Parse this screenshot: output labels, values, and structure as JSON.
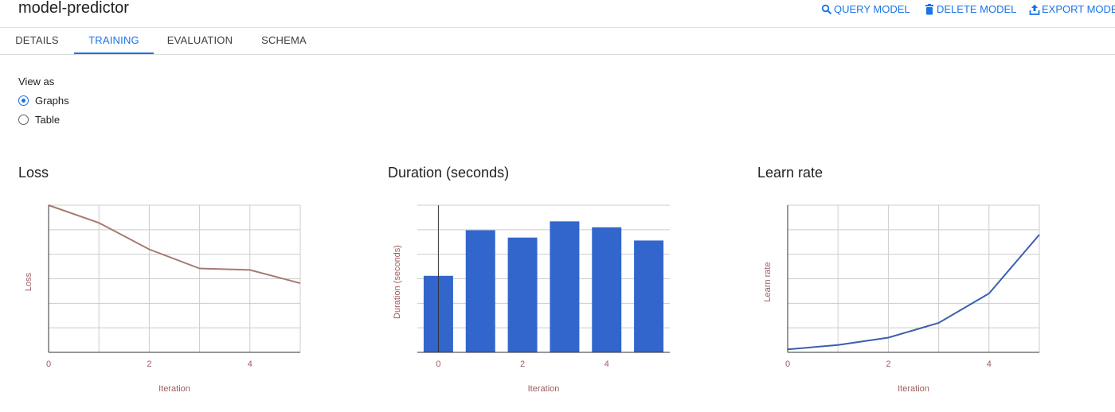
{
  "header": {
    "title": "model-predictor",
    "actions": [
      {
        "label": "QUERY MODEL",
        "icon": "search-icon"
      },
      {
        "label": "DELETE MODEL",
        "icon": "trash-icon"
      },
      {
        "label": "EXPORT MODEL",
        "icon": "export-icon"
      }
    ]
  },
  "tabs": [
    {
      "label": "DETAILS",
      "active": false
    },
    {
      "label": "TRAINING",
      "active": true
    },
    {
      "label": "EVALUATION",
      "active": false
    },
    {
      "label": "SCHEMA",
      "active": false
    }
  ],
  "view_as": {
    "label": "View as",
    "options": [
      {
        "label": "Graphs",
        "checked": true
      },
      {
        "label": "Table",
        "checked": false
      }
    ]
  },
  "colors": {
    "accent": "#1a73e8",
    "bar": "#3366cc",
    "loss_line": "#a67b6f",
    "learn_line": "#3a5fad",
    "axis_text": "#9e5c5c"
  },
  "chart_data": [
    {
      "type": "line",
      "title": "Loss",
      "xlabel": "Iteration",
      "ylabel": "Loss",
      "x": [
        0,
        1,
        2,
        3,
        4,
        5
      ],
      "series": [
        {
          "values": [
            1.0,
            0.88,
            0.7,
            0.57,
            0.56,
            0.47
          ]
        }
      ],
      "xticks": [
        0,
        2,
        4
      ],
      "xlim": [
        0,
        5
      ],
      "ylim": [
        0,
        1.0
      ],
      "grid": true
    },
    {
      "type": "bar",
      "title": "Duration (seconds)",
      "xlabel": "Iteration",
      "ylabel": "Duration (seconds)",
      "categories": [
        0,
        1,
        2,
        3,
        4,
        5
      ],
      "values": [
        0.52,
        0.83,
        0.78,
        0.89,
        0.85,
        0.76
      ],
      "xticks": [
        0,
        2,
        4
      ],
      "ylim": [
        0,
        1.0
      ],
      "grid": true
    },
    {
      "type": "line",
      "title": "Learn rate",
      "xlabel": "Iteration",
      "ylabel": "Learn rate",
      "x": [
        0,
        1,
        2,
        3,
        4,
        5
      ],
      "series": [
        {
          "values": [
            0.02,
            0.05,
            0.1,
            0.2,
            0.4,
            0.8
          ]
        }
      ],
      "xticks": [
        0,
        2,
        4
      ],
      "xlim": [
        0,
        5
      ],
      "ylim": [
        0,
        1.0
      ],
      "grid": true
    }
  ]
}
